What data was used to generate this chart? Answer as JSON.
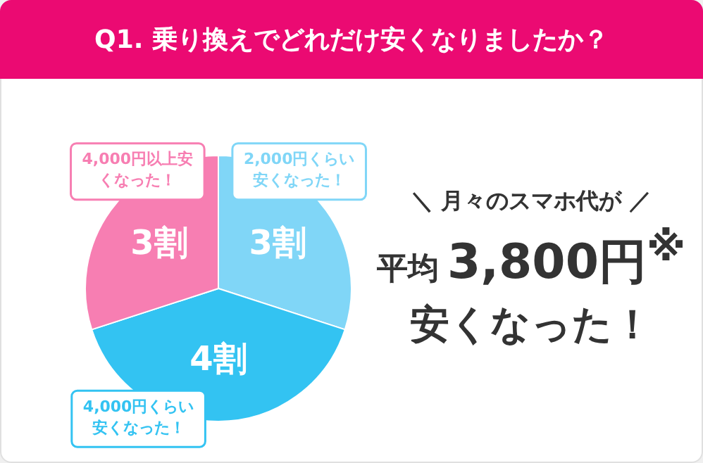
{
  "chart_data": {
    "type": "pie",
    "title": "Q1. 乗り換えでどれだけ安くなりましたか？",
    "categories": [
      "2,000円くらい安くなった！",
      "4,000円くらい安くなった！",
      "4,000円以上安くなった！"
    ],
    "values": [
      3,
      4,
      3
    ],
    "colors": [
      "#80d6f7",
      "#33c3f2",
      "#f77eb2"
    ],
    "value_labels": [
      "3割",
      "4割",
      "3割"
    ],
    "annotations": [
      "＼ 月々のスマホ代が ／",
      "平均",
      "3,800円$^{※}$",
      "安くなった！"
    ],
    "legend": false
  }
}
